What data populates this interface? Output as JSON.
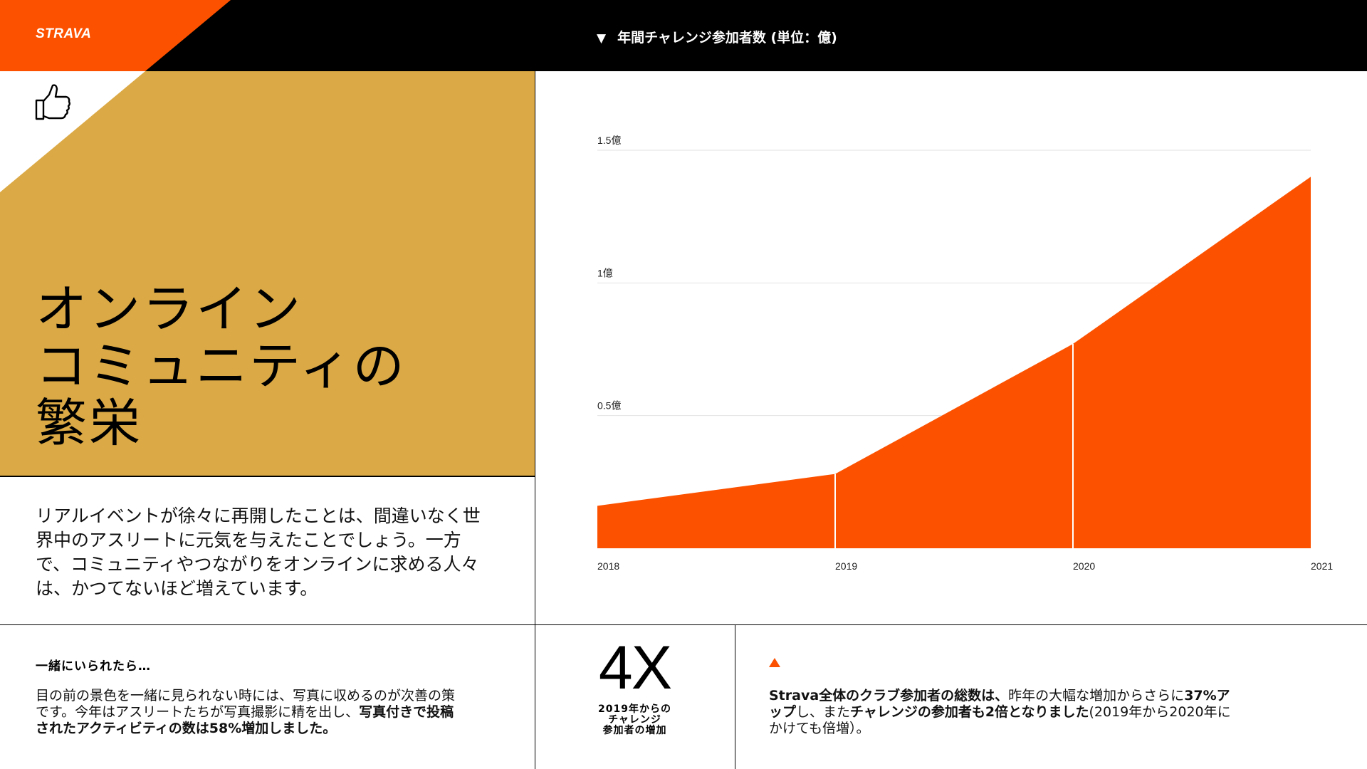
{
  "brand": {
    "logo_text": "STRAVA",
    "colors": {
      "orange": "#FC5200",
      "gold": "#DBA945",
      "black": "#000000",
      "white": "#FFFFFF"
    }
  },
  "hero": {
    "icon": "thumbs-up-icon",
    "title_lines": [
      "オンライン",
      "コミュニティの",
      "繁栄"
    ]
  },
  "intro": {
    "text": "リアルイベントが徐々に再開したことは、間違いなく世界中のアスリートに元気を与えたことでしょう。一方で、コミュニティやつながりをオンラインに求める人々は、かつてないほど増えています。"
  },
  "chart_header": {
    "marker": "▼",
    "title": "年間チャレンジ参加者数 (単位：億)"
  },
  "chart_data": {
    "type": "area",
    "title": "年間チャレンジ参加者数 (単位：億)",
    "x": [
      "2018",
      "2019",
      "2020",
      "2021"
    ],
    "series": [
      {
        "values": [
          0.16,
          0.28,
          0.77,
          1.4
        ]
      }
    ],
    "ylim": [
      0,
      1.5
    ],
    "yticks": [
      {
        "value": 0.5,
        "label": "0.5億"
      },
      {
        "value": 1.0,
        "label": "1億"
      },
      {
        "value": 1.5,
        "label": "1.5億"
      }
    ],
    "grid": true,
    "color": "#FC5200"
  },
  "note": {
    "title": "一緒にいられたら…",
    "body_plain": "目の前の景色を一緒に見られない時には、写真に収めるのが次善の策です。今年はアスリートたちが写真撮影に精を出し、",
    "body_bold": "写真付きで投稿されたアクティビティの数は58%増加しました。"
  },
  "big_stat": {
    "value": "4X",
    "caption_lines": [
      "2019年からの",
      "チャレンジ",
      "参加者の増加"
    ]
  },
  "club_stat": {
    "marker": "triangle-up-icon",
    "part1_bold": "Strava全体のクラブ参加者の総数は、",
    "part2": "昨年の大幅な増加からさらに",
    "part3_bold": "37%アップ",
    "part4": "し、また",
    "part5_bold": "チャレンジの参加者も2倍となりました",
    "part6": "(2019年から2020年にかけても倍増）。"
  }
}
